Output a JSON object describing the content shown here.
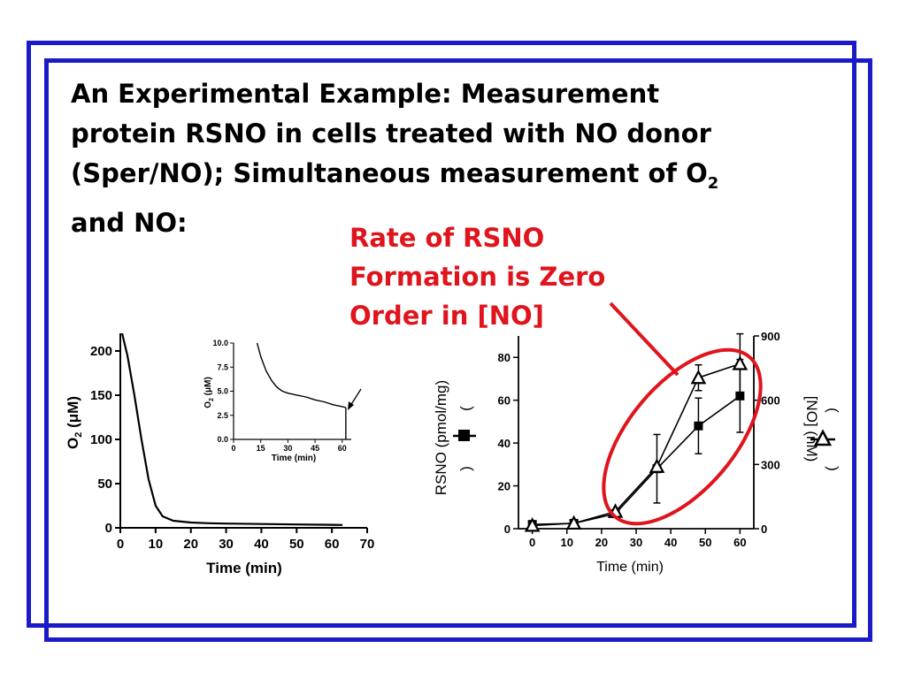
{
  "slide": {
    "title_line1": "An Experimental Example: Measurement",
    "title_line2": "protein RSNO in cells treated with NO donor",
    "title_line3_main": "(Sper/NO); Simultaneous measurement of O",
    "title_line3_sub": "2",
    "title_line4": "and NO:",
    "note_line1": "Rate of RSNO",
    "note_line2": "Formation is Zero",
    "note_line3": "Order in [NO]",
    "frame_color": "#1a1ac8",
    "note_color": "#e0141c"
  },
  "chart_data": [
    {
      "type": "line",
      "xlabel": "Time (min)",
      "ylabel_main": "O",
      "ylabel_sub": "2",
      "ylabel_unit": "(μM)",
      "xlim": [
        0,
        70
      ],
      "ylim": [
        0,
        220
      ],
      "xticks": [
        "0",
        "10",
        "20",
        "30",
        "40",
        "50",
        "60",
        "70"
      ],
      "yticks": [
        "0",
        "50",
        "100",
        "150",
        "200"
      ],
      "x": [
        0.5,
        2,
        4,
        6,
        8,
        10,
        12,
        15,
        20,
        25,
        30,
        40,
        50,
        60,
        63
      ],
      "y": [
        220,
        195,
        150,
        100,
        55,
        25,
        13,
        8,
        6,
        5.2,
        4.8,
        4.3,
        3.8,
        3.4,
        3.2
      ]
    },
    {
      "type": "line",
      "xlabel": "Time (min)",
      "ylabel_main": "O",
      "ylabel_sub": "2",
      "ylabel_unit": "(μM)",
      "xlim": [
        0,
        65
      ],
      "ylim": [
        0,
        10
      ],
      "xticks": [
        "0",
        "15",
        "30",
        "45",
        "60"
      ],
      "yticks": [
        "0.0",
        "2.5",
        "5.0",
        "7.5",
        "10.0"
      ],
      "x": [
        13,
        15,
        18,
        21,
        24,
        27,
        30,
        35,
        40,
        45,
        50,
        55,
        60,
        62
      ],
      "y": [
        10,
        8.6,
        7.1,
        6.1,
        5.4,
        5.0,
        4.8,
        4.6,
        4.4,
        4.1,
        3.9,
        3.6,
        3.4,
        3.3
      ],
      "drop_x": 62,
      "annotation": "arrow"
    },
    {
      "type": "line",
      "xlabel": "Time (min)",
      "ylabel_left": "RSNO (pmol/mg)",
      "ylabel_right": "[NO] (nM)",
      "legend_paren_open": "(",
      "legend_paren_close": ")",
      "xlim": [
        -4,
        64
      ],
      "ylim_left": [
        0,
        90
      ],
      "ylim_right": [
        0,
        900
      ],
      "xticks": [
        "0",
        "10",
        "20",
        "30",
        "40",
        "50",
        "60"
      ],
      "yticks_left": [
        "0",
        "20",
        "40",
        "60",
        "80"
      ],
      "yticks_right": [
        "0",
        "300",
        "600",
        "900"
      ],
      "series": [
        {
          "marker": "filled-square",
          "axis": "left",
          "x": [
            0,
            12,
            24,
            36,
            48,
            60
          ],
          "y": [
            2,
            2.5,
            7,
            28,
            48,
            62
          ],
          "err": [
            0,
            0,
            0,
            16,
            13,
            17
          ]
        },
        {
          "marker": "open-triangle",
          "axis": "right",
          "x": [
            0,
            12,
            24,
            36,
            48,
            60
          ],
          "y": [
            15,
            25,
            80,
            290,
            705,
            770
          ],
          "err": [
            0,
            0,
            0,
            0,
            60,
            140
          ]
        }
      ],
      "annotation": "red-ellipse"
    }
  ]
}
